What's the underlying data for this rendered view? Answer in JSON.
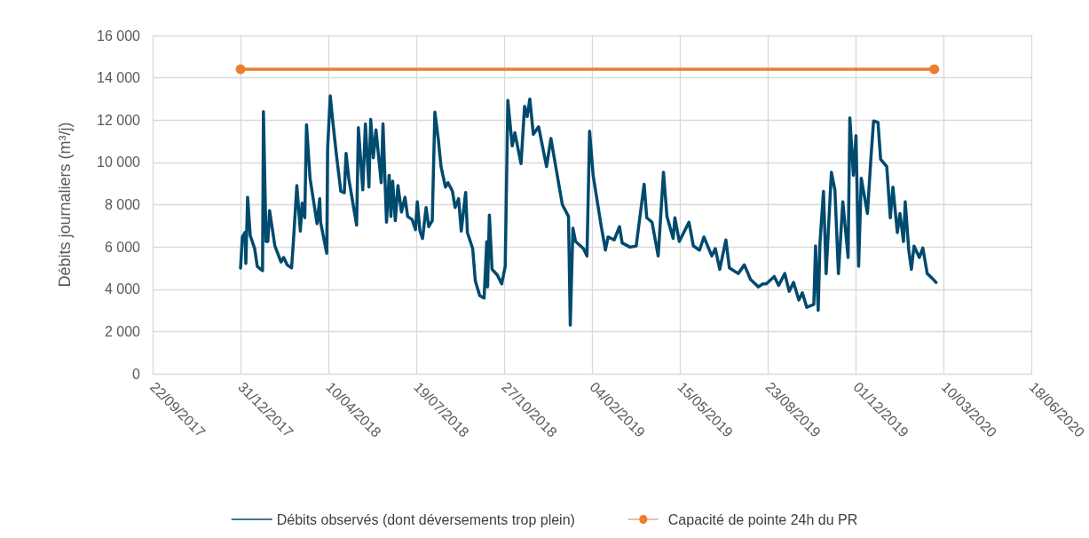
{
  "chart_data": {
    "type": "line",
    "ylabel": "Débits journaliers (m³/j)",
    "legend": "bottom",
    "grid": true,
    "line_style": "solid",
    "xlim": [
      "2017-09-22",
      "2020-06-18"
    ],
    "xticks": [
      {
        "value": "2017-09-22",
        "label": "22/09/2017"
      },
      {
        "value": "2017-12-31",
        "label": "31/12/2017"
      },
      {
        "value": "2018-04-10",
        "label": "10/04/2018"
      },
      {
        "value": "2018-07-19",
        "label": "19/07/2018"
      },
      {
        "value": "2018-10-27",
        "label": "27/10/2018"
      },
      {
        "value": "2019-02-04",
        "label": "04/02/2019"
      },
      {
        "value": "2019-05-15",
        "label": "15/05/2019"
      },
      {
        "value": "2019-08-23",
        "label": "23/08/2019"
      },
      {
        "value": "2019-12-01",
        "label": "01/12/2019"
      },
      {
        "value": "2020-03-10",
        "label": "10/03/2020"
      },
      {
        "value": "2020-06-18",
        "label": "18/06/2020"
      }
    ],
    "ylim": [
      0,
      16000
    ],
    "yticks": [
      0,
      {
        "value": 2000,
        "label": "2 000"
      },
      {
        "value": 4000,
        "label": "4 000"
      },
      {
        "value": 6000,
        "label": "6 000"
      },
      {
        "value": 8000,
        "label": "8 000"
      },
      {
        "value": 10000,
        "label": "10 000"
      },
      {
        "value": 12000,
        "label": "12 000"
      },
      {
        "value": 14000,
        "label": "14 000"
      },
      {
        "value": 16000,
        "label": "16 000"
      }
    ],
    "series": [
      {
        "name": "Débits observés (dont déversements trop plein)",
        "color": "#004a6e",
        "marker": "none",
        "x": [
          "2017-12-31",
          "2018-01-02",
          "2018-01-05",
          "2018-01-06",
          "2018-01-08",
          "2018-01-11",
          "2018-01-16",
          "2018-01-19",
          "2018-01-25",
          "2018-01-26",
          "2018-01-29",
          "2018-01-31",
          "2018-02-02",
          "2018-02-08",
          "2018-02-15",
          "2018-02-18",
          "2018-02-22",
          "2018-02-27",
          "2018-03-01",
          "2018-03-05",
          "2018-03-09",
          "2018-03-11",
          "2018-03-14",
          "2018-03-16",
          "2018-03-20",
          "2018-03-28",
          "2018-03-31",
          "2018-04-01",
          "2018-04-08",
          "2018-04-09",
          "2018-04-12",
          "2018-04-15",
          "2018-04-19",
          "2018-04-24",
          "2018-04-28",
          "2018-04-30",
          "2018-05-03",
          "2018-05-12",
          "2018-05-14",
          "2018-05-19",
          "2018-05-22",
          "2018-05-26",
          "2018-05-28",
          "2018-05-31",
          "2018-06-03",
          "2018-06-09",
          "2018-06-11",
          "2018-06-15",
          "2018-06-18",
          "2018-06-20",
          "2018-06-22",
          "2018-06-25",
          "2018-06-28",
          "2018-07-02",
          "2018-07-06",
          "2018-07-09",
          "2018-07-14",
          "2018-07-18",
          "2018-07-20",
          "2018-07-23",
          "2018-07-26",
          "2018-07-30",
          "2018-08-02",
          "2018-08-06",
          "2018-08-09",
          "2018-08-13",
          "2018-08-16",
          "2018-08-21",
          "2018-08-24",
          "2018-08-29",
          "2018-09-01",
          "2018-09-05",
          "2018-09-08",
          "2018-09-13",
          "2018-09-15",
          "2018-09-21",
          "2018-09-24",
          "2018-09-29",
          "2018-10-04",
          "2018-10-07",
          "2018-10-08",
          "2018-10-10",
          "2018-10-13",
          "2018-10-19",
          "2018-10-24",
          "2018-10-28",
          "2018-10-31",
          "2018-11-05",
          "2018-11-08",
          "2018-11-15",
          "2018-11-19",
          "2018-11-22",
          "2018-11-25",
          "2018-11-29",
          "2018-12-05",
          "2018-12-14",
          "2018-12-19",
          "2018-12-25",
          "2019-01-01",
          "2019-01-08",
          "2019-01-10",
          "2019-01-13",
          "2019-01-16",
          "2019-01-25",
          "2019-01-29",
          "2019-02-01",
          "2019-02-05",
          "2019-02-14",
          "2019-02-19",
          "2019-02-22",
          "2019-03-01",
          "2019-03-07",
          "2019-03-10",
          "2019-03-19",
          "2019-03-26",
          "2019-04-04",
          "2019-04-07",
          "2019-04-13",
          "2019-04-20",
          "2019-04-26",
          "2019-04-30",
          "2019-05-07",
          "2019-05-09",
          "2019-05-14",
          "2019-05-25",
          "2019-05-30",
          "2019-06-06",
          "2019-06-11",
          "2019-06-20",
          "2019-06-24",
          "2019-06-29",
          "2019-07-06",
          "2019-07-10",
          "2019-07-20",
          "2019-07-27",
          "2019-08-03",
          "2019-08-12",
          "2019-08-17",
          "2019-08-21",
          "2019-08-30",
          "2019-09-04",
          "2019-09-11",
          "2019-09-16",
          "2019-09-21",
          "2019-09-27",
          "2019-10-01",
          "2019-10-06",
          "2019-10-14",
          "2019-10-16",
          "2019-10-19",
          "2019-10-21",
          "2019-10-25",
          "2019-10-28",
          "2019-11-03",
          "2019-11-07",
          "2019-11-11",
          "2019-11-16",
          "2019-11-22",
          "2019-11-24",
          "2019-11-28",
          "2019-12-01",
          "2019-12-04",
          "2019-12-07",
          "2019-12-14",
          "2019-12-18",
          "2019-12-21",
          "2019-12-26",
          "2019-12-29",
          "2020-01-05",
          "2020-01-09",
          "2020-01-12",
          "2020-01-17",
          "2020-01-20",
          "2020-01-24",
          "2020-01-26",
          "2020-01-30",
          "2020-02-02",
          "2020-02-05",
          "2020-02-11",
          "2020-02-15",
          "2020-02-20",
          "2020-02-27",
          "2020-03-01"
        ],
        "values": [
          5000,
          6470,
          6680,
          5220,
          8350,
          6540,
          5920,
          5080,
          4880,
          12400,
          6260,
          6260,
          7720,
          6050,
          5290,
          5500,
          5150,
          5010,
          6190,
          8900,
          6750,
          8070,
          7380,
          11780,
          9250,
          7100,
          8280,
          7170,
          5700,
          10640,
          13140,
          11890,
          10360,
          8630,
          8560,
          10430,
          9250,
          7030,
          11640,
          8700,
          11820,
          8830,
          12030,
          10220,
          11540,
          9040,
          11820,
          7170,
          9390,
          7440,
          9110,
          7240,
          8900,
          7650,
          8350,
          7440,
          7300,
          6820,
          8140,
          6750,
          6400,
          7860,
          6960,
          7240,
          12380,
          11060,
          9800,
          8830,
          9040,
          8630,
          7860,
          8280,
          6750,
          8580,
          6680,
          5920,
          4390,
          3700,
          3580,
          6250,
          4110,
          7510,
          4940,
          4670,
          4250,
          5080,
          12930,
          10780,
          11400,
          9940,
          12650,
          12170,
          13000,
          11330,
          11680,
          9800,
          11130,
          9670,
          8000,
          7440,
          2300,
          6890,
          6260,
          5920,
          5570,
          11470,
          9390,
          7030,
          5850,
          6470,
          6330,
          6960,
          6190,
          5990,
          6050,
          8970,
          7380,
          7170,
          5570,
          9530,
          7440,
          6400,
          7380,
          6260,
          7170,
          6050,
          5850,
          6470,
          5570,
          5920,
          4940,
          6330,
          5010,
          4740,
          5150,
          4460,
          4110,
          4250,
          4250,
          4600,
          4180,
          4740,
          3900,
          4320,
          3490,
          3830,
          3140,
          3280,
          6050,
          3000,
          6190,
          8630,
          4740,
          9530,
          8700,
          4740,
          8140,
          5500,
          12100,
          9390,
          11260,
          5080,
          9250,
          7580,
          10220,
          11960,
          11890,
          10150,
          9800,
          7380,
          8830,
          6680,
          7580,
          6260,
          8140,
          5850,
          4940,
          6040,
          5500,
          5950,
          4740,
          4460,
          4320
        ]
      },
      {
        "name": "Capacité de pointe 24h du PR",
        "color": "#ed7d31",
        "marker": "circle",
        "x": [
          "2017-12-31",
          "2020-02-28"
        ],
        "values": [
          14400,
          14400
        ]
      }
    ]
  }
}
